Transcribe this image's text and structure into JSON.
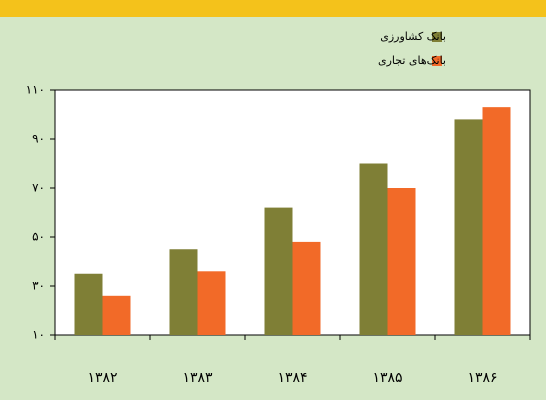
{
  "chart_data": {
    "type": "bar",
    "categories": [
      "۱۳۸۲",
      "۱۳۸۳",
      "۱۳۸۴",
      "۱۳۸۵",
      "۱۳۸۶"
    ],
    "series": [
      {
        "name": "بانک کشاورزی",
        "color": "#7f7f36",
        "values": [
          35,
          45,
          62,
          80,
          98
        ]
      },
      {
        "name": "بانک‌های تجاری",
        "color": "#f26a28",
        "values": [
          26,
          36,
          48,
          70,
          103
        ]
      }
    ],
    "ylim": [
      10,
      110
    ],
    "yticks": [
      {
        "value": 10,
        "label": "۱۰"
      },
      {
        "value": 30,
        "label": "۳۰"
      },
      {
        "value": 50,
        "label": "۵۰"
      },
      {
        "value": 70,
        "label": "۷۰"
      },
      {
        "value": 90,
        "label": "۹۰"
      },
      {
        "value": 110,
        "label": "۱۱۰"
      }
    ],
    "grid": false,
    "legend": "top-right"
  }
}
